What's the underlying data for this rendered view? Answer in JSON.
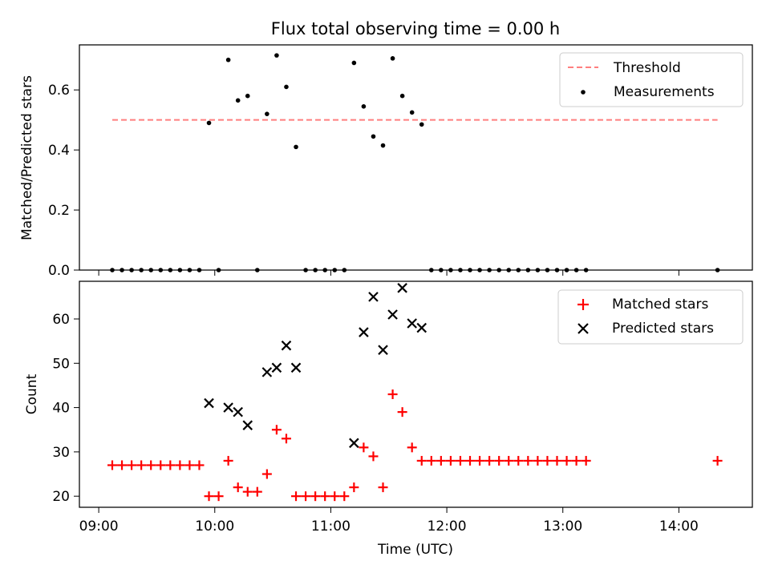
{
  "chart_data": [
    {
      "type": "scatter",
      "title": "Flux total observing time = 0.00 h",
      "xlabel": "",
      "ylabel": "Matched/Predicted stars",
      "xlim": [
        "08:50",
        "14:38"
      ],
      "ylim": [
        0,
        0.75
      ],
      "yticks": [
        "0.0",
        "0.2",
        "0.4",
        "0.6"
      ],
      "grid": false,
      "legend_position": "top-right",
      "threshold": {
        "name": "Threshold",
        "value": 0.5,
        "x_range": [
          "09:07",
          "14:20"
        ],
        "color": "#ff7f7f",
        "style": "dashed"
      },
      "series": [
        {
          "name": "Measurements",
          "marker": "dot",
          "color": "#000000",
          "points": [
            [
              "09:07",
              0
            ],
            [
              "09:12",
              0
            ],
            [
              "09:17",
              0
            ],
            [
              "09:22",
              0
            ],
            [
              "09:27",
              0
            ],
            [
              "09:32",
              0
            ],
            [
              "09:37",
              0
            ],
            [
              "09:42",
              0
            ],
            [
              "09:47",
              0
            ],
            [
              "09:52",
              0
            ],
            [
              "09:57",
              0.49
            ],
            [
              "10:02",
              0
            ],
            [
              "10:07",
              0.7
            ],
            [
              "10:12",
              0.565
            ],
            [
              "10:17",
              0.58
            ],
            [
              "10:22",
              0
            ],
            [
              "10:27",
              0.52
            ],
            [
              "10:32",
              0.715
            ],
            [
              "10:37",
              0.61
            ],
            [
              "10:42",
              0.41
            ],
            [
              "10:47",
              0
            ],
            [
              "10:52",
              0
            ],
            [
              "10:57",
              0
            ],
            [
              "11:02",
              0
            ],
            [
              "11:07",
              0
            ],
            [
              "11:12",
              0.69
            ],
            [
              "11:17",
              0.545
            ],
            [
              "11:22",
              0.445
            ],
            [
              "11:27",
              0.415
            ],
            [
              "11:32",
              0.705
            ],
            [
              "11:37",
              0.58
            ],
            [
              "11:42",
              0.525
            ],
            [
              "11:47",
              0.485
            ],
            [
              "11:52",
              0
            ],
            [
              "11:57",
              0
            ],
            [
              "12:02",
              0
            ],
            [
              "12:07",
              0
            ],
            [
              "12:12",
              0
            ],
            [
              "12:17",
              0
            ],
            [
              "12:22",
              0
            ],
            [
              "12:27",
              0
            ],
            [
              "12:32",
              0
            ],
            [
              "12:37",
              0
            ],
            [
              "12:42",
              0
            ],
            [
              "12:47",
              0
            ],
            [
              "12:52",
              0
            ],
            [
              "12:57",
              0
            ],
            [
              "13:02",
              0
            ],
            [
              "13:07",
              0
            ],
            [
              "13:12",
              0
            ],
            [
              "14:20",
              0
            ]
          ]
        }
      ]
    },
    {
      "type": "scatter",
      "title": "",
      "xlabel": "Time (UTC)",
      "ylabel": "Count",
      "xlim": [
        "08:50",
        "14:38"
      ],
      "ylim": [
        17.5,
        68.5
      ],
      "yticks": [
        "20",
        "30",
        "40",
        "50",
        "60"
      ],
      "xticks": [
        "09:00",
        "10:00",
        "11:00",
        "12:00",
        "13:00",
        "14:00"
      ],
      "grid": false,
      "legend_position": "top-right",
      "series": [
        {
          "name": "Matched stars",
          "marker": "plus",
          "color": "#ff0000",
          "points": [
            [
              "09:07",
              27
            ],
            [
              "09:12",
              27
            ],
            [
              "09:17",
              27
            ],
            [
              "09:22",
              27
            ],
            [
              "09:27",
              27
            ],
            [
              "09:32",
              27
            ],
            [
              "09:37",
              27
            ],
            [
              "09:42",
              27
            ],
            [
              "09:47",
              27
            ],
            [
              "09:52",
              27
            ],
            [
              "09:57",
              20
            ],
            [
              "10:02",
              20
            ],
            [
              "10:07",
              28
            ],
            [
              "10:12",
              22
            ],
            [
              "10:17",
              21
            ],
            [
              "10:22",
              21
            ],
            [
              "10:27",
              25
            ],
            [
              "10:32",
              35
            ],
            [
              "10:37",
              33
            ],
            [
              "10:42",
              20
            ],
            [
              "10:47",
              20
            ],
            [
              "10:52",
              20
            ],
            [
              "10:57",
              20
            ],
            [
              "11:02",
              20
            ],
            [
              "11:07",
              20
            ],
            [
              "11:12",
              22
            ],
            [
              "11:17",
              31
            ],
            [
              "11:22",
              29
            ],
            [
              "11:27",
              22
            ],
            [
              "11:32",
              43
            ],
            [
              "11:37",
              39
            ],
            [
              "11:42",
              31
            ],
            [
              "11:47",
              28
            ],
            [
              "11:52",
              28
            ],
            [
              "11:57",
              28
            ],
            [
              "12:02",
              28
            ],
            [
              "12:07",
              28
            ],
            [
              "12:12",
              28
            ],
            [
              "12:17",
              28
            ],
            [
              "12:22",
              28
            ],
            [
              "12:27",
              28
            ],
            [
              "12:32",
              28
            ],
            [
              "12:37",
              28
            ],
            [
              "12:42",
              28
            ],
            [
              "12:47",
              28
            ],
            [
              "12:52",
              28
            ],
            [
              "12:57",
              28
            ],
            [
              "13:02",
              28
            ],
            [
              "13:07",
              28
            ],
            [
              "13:12",
              28
            ],
            [
              "14:20",
              28
            ]
          ]
        },
        {
          "name": "Predicted stars",
          "marker": "x",
          "color": "#000000",
          "points": [
            [
              "09:57",
              41
            ],
            [
              "10:07",
              40
            ],
            [
              "10:12",
              39
            ],
            [
              "10:17",
              36
            ],
            [
              "10:27",
              48
            ],
            [
              "10:32",
              49
            ],
            [
              "10:37",
              54
            ],
            [
              "10:42",
              49
            ],
            [
              "11:12",
              32
            ],
            [
              "11:17",
              57
            ],
            [
              "11:22",
              65
            ],
            [
              "11:27",
              53
            ],
            [
              "11:32",
              61
            ],
            [
              "11:37",
              67
            ],
            [
              "11:42",
              59
            ],
            [
              "11:47",
              58
            ]
          ]
        }
      ]
    }
  ]
}
